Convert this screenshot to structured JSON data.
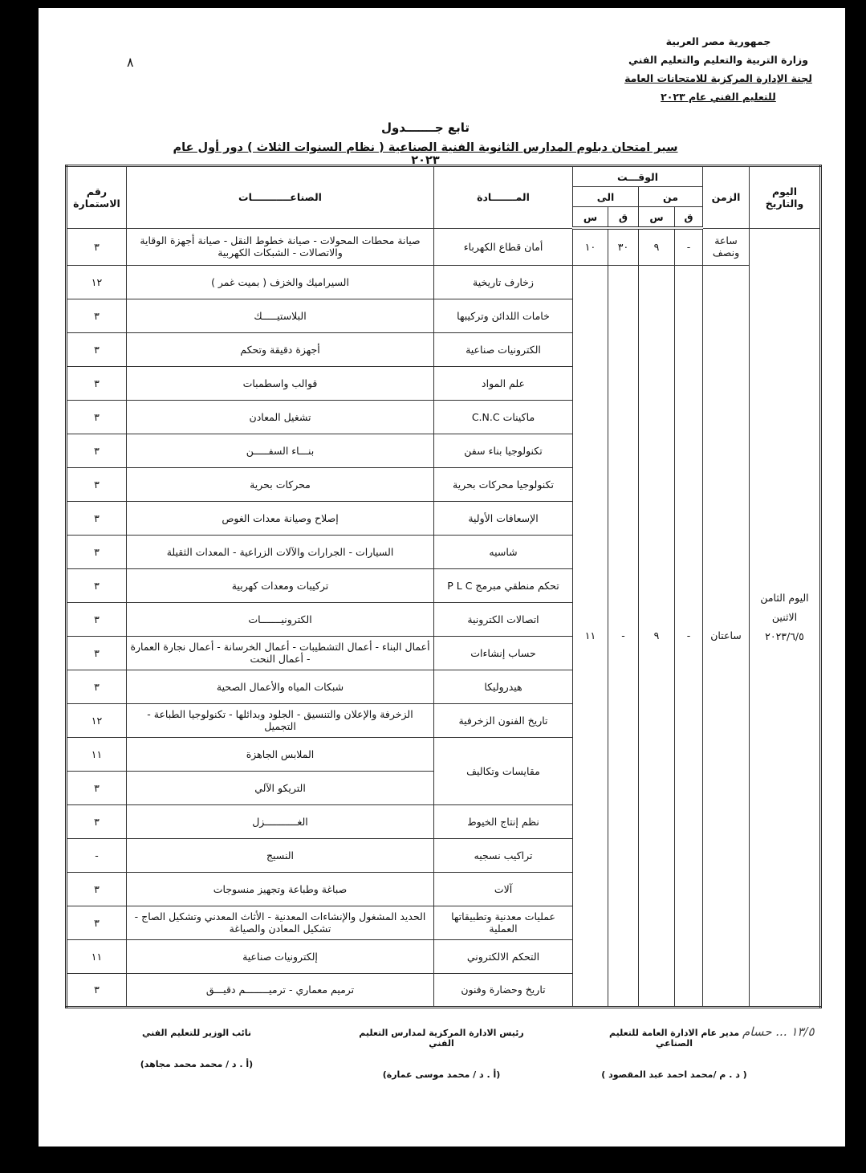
{
  "page_number": "٨",
  "header": {
    "line1": "جمهورية مصر العربية",
    "line2": "وزارة التربية والتعليم والتعليم الفني",
    "line3": "لجنة الإدارة المركزية للامتحانات العامة",
    "line4": "للتعليم الفني عام ٢٠٢٣"
  },
  "title": "تابع جـــــــدول",
  "subtitle": "سير امتحان  دبلوم المدارس الثانوية الفنية  الصناعية ( نظام السنوات الثلاث ) دور أول عام ٢٠٢٣",
  "table": {
    "headers": {
      "day_date": "اليوم والتاريخ",
      "duration": "الزمن",
      "time": "الوقـــت",
      "from": "من",
      "to": "الى",
      "minute": "ق",
      "hour": "س",
      "subject": "المـــــــادة",
      "industries": "الصناعـــــــــــات",
      "form_number": "رقم الاستمارة"
    },
    "day": "اليوم الثامن الاثنين ٢٠٢٣/٦/٥",
    "groups": [
      {
        "duration": "ساعة ونصف",
        "from_min": "-",
        "from_hour": "٩",
        "to_min": "٣٠",
        "to_hour": "١٠"
      },
      {
        "duration": "ساعتان",
        "from_min": "-",
        "from_hour": "٩",
        "to_min": "-",
        "to_hour": "١١"
      }
    ],
    "rows": [
      {
        "subject": "أمان قطاع الكهرباء",
        "industries": "صيانة محطات المحولات - صيانة خطوط النقل - صيانة أجهزة الوقاية والاتصالات - الشبكات الكهربية",
        "form": "٣"
      },
      {
        "subject": "زخارف تاريخية",
        "industries": "السيراميك والخزف ( بميت غمر )",
        "form": "١٢"
      },
      {
        "subject": "خامات اللدائن وتركيبها",
        "industries": "البلاستيـــــك",
        "form": "٣"
      },
      {
        "subject": "الكترونيات صناعية",
        "industries": "أجهزة دقيقة وتحكم",
        "form": "٣"
      },
      {
        "subject": "علم المواد",
        "industries": "قوالب واسطمبات",
        "form": "٣"
      },
      {
        "subject": "ماكينات   C.N.C",
        "industries": "تشغيل المعادن",
        "form": "٣"
      },
      {
        "subject": "تكنولوجيا بناء سفن",
        "industries": "بنـــاء السفـــــن",
        "form": "٣"
      },
      {
        "subject": "تكنولوجيا محركات بحرية",
        "industries": "محركات بحرية",
        "form": "٣"
      },
      {
        "subject": "الإسعافات الأولية",
        "industries": "إصلاح وصيانة معدات الغوص",
        "form": "٣"
      },
      {
        "subject": "شاسيه",
        "industries": "السيارات - الجرارات والآلات الزراعية - المعدات الثقيلة",
        "form": "٣"
      },
      {
        "subject": "تحكم منطقي مبرمج P L C",
        "industries": "تركيبات ومعدات كهربية",
        "form": "٣"
      },
      {
        "subject": "اتصالات الكترونية",
        "industries": "الكترونيـــــــات",
        "form": "٣"
      },
      {
        "subject": "حساب إنشاءات",
        "industries": "أعمال البناء - أعمال التشطيبات - أعمال الخرسانة - أعمال نجارة العمارة - أعمال النحت",
        "form": "٣"
      },
      {
        "subject": "هيدروليكا",
        "industries": "شبكات المياه والأعمال الصحية",
        "form": "٣"
      },
      {
        "subject": "تاريخ الفنون الزخرفية",
        "industries": "الزخرفة والإعلان والتنسيق - الجلود وبدائلها - تكنولوجيا الطباعة - التجميل",
        "form": "١٢"
      },
      {
        "subject": "مقايسات وتكاليف",
        "subject_span": 2,
        "industries": "الملابس الجاهزة",
        "form": "١١"
      },
      {
        "industries": "التريكو الآلي",
        "form": "٣"
      },
      {
        "subject": "نظم إنتاج الخيوط",
        "industries": "الغـــــــــــزل",
        "form": "٣"
      },
      {
        "subject": "تراكيب نسجيه",
        "industries": "النسيج",
        "form": "-"
      },
      {
        "subject": "آلات",
        "industries": "صباغة وطباعة وتجهيز منسوجات",
        "form": "٣"
      },
      {
        "subject": "عمليات معدنية وتطبيقاتها العملية",
        "industries": "الحديد المشغول والإنشاءات المعدنية - الأثاث المعدني وتشكيل الصاج - تشكيل المعادن والصياغة",
        "form": "٣"
      },
      {
        "subject": "التحكم الالكتروني",
        "industries": "إلكترونيات صناعية",
        "form": "١١"
      },
      {
        "subject": "تاريخ وحضارة وفنون",
        "industries": "ترميم معماري - ترميــــــــم دقيـــق",
        "form": "٣"
      }
    ]
  },
  "signatures": [
    {
      "title": "مدير عام الادارة العامة للتعليم الصناعي",
      "name": "( د . م /محمد احمد عبد المقصود )"
    },
    {
      "title": "رئيس الادارة المركزية لمدارس التعليم الفني",
      "name": "(أ . د / محمد موسى عمارة)"
    },
    {
      "title": "نائب الوزير للتعليم الفني",
      "name": "(أ . د / محمد محمد مجاهد)"
    }
  ],
  "handwritten_note": "١٣/٥ ... حسام"
}
